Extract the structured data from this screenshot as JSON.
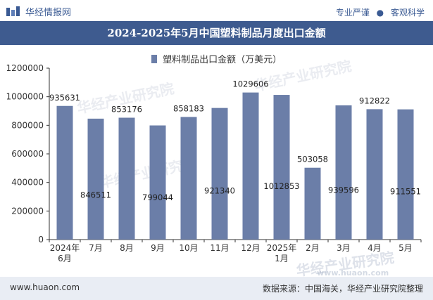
{
  "header": {
    "brand": "华经情报网",
    "tag1": "专业严谨",
    "tag2": "客观科学",
    "dot": "●"
  },
  "title": "2024-2025年5月中国塑料制品月度出口金额",
  "footer": {
    "url": "www.huaon.com",
    "source": "数据来源：中国海关，华经产业研究院整理"
  },
  "watermark": "华经产业研究院",
  "watermark_url": "www.huaon.com",
  "colors": {
    "bar": "#6b7ea8",
    "title_bg": "#3e5b8f",
    "footer_bg": "#e9edf4"
  },
  "chart_data": {
    "type": "bar",
    "categories": [
      "2024年\n6月",
      "7月",
      "8月",
      "9月",
      "10月",
      "11月",
      "12月",
      "2025年\n1月",
      "2月",
      "3月",
      "4月",
      "5月"
    ],
    "series": [
      {
        "name": "塑料制品出口金额（万美元）",
        "values": [
          935631,
          846511,
          853176,
          799044,
          858183,
          921340,
          1029606,
          1012853,
          503058,
          939596,
          912822,
          911551
        ]
      }
    ],
    "ylim": [
      0,
      1200000
    ],
    "yticks": [
      0,
      200000,
      400000,
      600000,
      800000,
      1000000,
      1200000
    ],
    "label_positions": [
      "top",
      "inside",
      "top",
      "inside",
      "top",
      "inside",
      "top",
      "inside",
      "top",
      "inside",
      "top",
      "inside"
    ],
    "legend_position": "top-center",
    "grid": false
  }
}
